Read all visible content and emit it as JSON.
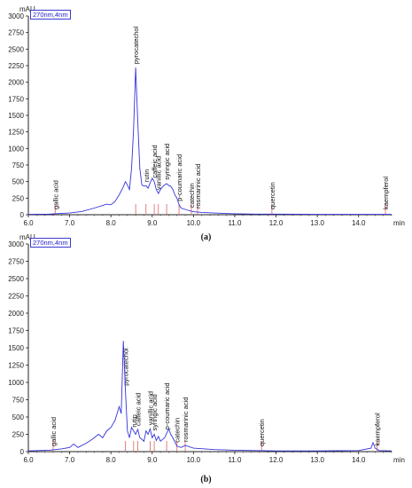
{
  "chart_data": [
    {
      "type": "line",
      "panel_label": "(a)",
      "ylabel": "mAU",
      "xlabel": "min",
      "wavelength_label": "270nm,4nm",
      "xlim": [
        6.0,
        14.8
      ],
      "ylim": [
        0,
        3000
      ],
      "xticks": [
        "6.0",
        "7.0",
        "8.0",
        "9.0",
        "10.0",
        "11.0",
        "12.0",
        "13.0",
        "14.0"
      ],
      "yticks": [
        "0",
        "250",
        "500",
        "750",
        "1000",
        "1250",
        "1500",
        "1750",
        "2000",
        "2250",
        "2500",
        "2750",
        "3000"
      ],
      "line_color": "#3333dd",
      "marker_color": "#e06060",
      "series": [
        {
          "x": [
            6.0,
            6.5,
            7.0,
            7.3,
            7.6,
            7.9,
            8.0,
            8.1,
            8.2,
            8.3,
            8.35,
            8.4,
            8.45,
            8.5,
            8.55,
            8.6,
            8.65,
            8.7,
            8.75,
            8.8,
            8.85,
            8.9,
            8.95,
            9.0,
            9.05,
            9.1,
            9.15,
            9.2,
            9.25,
            9.3,
            9.35,
            9.4,
            9.45,
            9.5,
            9.55,
            9.6,
            9.65,
            9.7,
            9.8,
            9.9,
            10.0,
            10.2,
            10.5,
            11.0,
            11.5,
            12.0,
            12.5,
            13.0,
            13.5,
            14.0,
            14.5,
            14.8
          ],
          "y": [
            5,
            10,
            25,
            50,
            100,
            160,
            150,
            200,
            300,
            420,
            500,
            450,
            380,
            700,
            1300,
            2220,
            1400,
            700,
            450,
            430,
            440,
            400,
            480,
            550,
            500,
            380,
            320,
            380,
            420,
            450,
            470,
            440,
            430,
            380,
            300,
            250,
            150,
            100,
            80,
            60,
            45,
            35,
            25,
            15,
            10,
            10,
            8,
            5,
            5,
            5,
            5,
            5
          ]
        }
      ],
      "peaks": [
        {
          "name": "gallic acid",
          "x": 6.65
        },
        {
          "name": "pyrocatechol",
          "x": 8.6
        },
        {
          "name": "rutin",
          "x": 8.85
        },
        {
          "name": "caffeic acid",
          "x": 9.05
        },
        {
          "name": "vanillic acid",
          "x": 9.15
        },
        {
          "name": "syringic acid",
          "x": 9.35
        },
        {
          "name": "p-coumaric acid",
          "x": 9.65
        },
        {
          "name": "catechin",
          "x": 9.95
        },
        {
          "name": "rosmarinic acid",
          "x": 10.1
        },
        {
          "name": "quercetin",
          "x": 11.9
        },
        {
          "name": "kaempferol",
          "x": 14.65
        }
      ]
    },
    {
      "type": "line",
      "panel_label": "(b)",
      "ylabel": "mAU",
      "xlabel": "min",
      "wavelength_label": "270nm,4nm",
      "xlim": [
        6.0,
        14.8
      ],
      "ylim": [
        0,
        3000
      ],
      "xticks": [
        "6.0",
        "7.0",
        "8.0",
        "9.0",
        "10.0",
        "11.0",
        "12.0",
        "13.0",
        "14.0"
      ],
      "yticks": [
        "0",
        "250",
        "500",
        "750",
        "1000",
        "1250",
        "1500",
        "1750",
        "2000",
        "2250",
        "2500",
        "2750",
        "3000"
      ],
      "line_color": "#3333dd",
      "marker_color": "#e06060",
      "series": [
        {
          "x": [
            6.0,
            6.5,
            6.8,
            7.0,
            7.1,
            7.2,
            7.4,
            7.55,
            7.7,
            7.8,
            7.9,
            8.0,
            8.1,
            8.2,
            8.25,
            8.3,
            8.35,
            8.4,
            8.45,
            8.5,
            8.55,
            8.6,
            8.65,
            8.7,
            8.75,
            8.8,
            8.85,
            8.9,
            8.95,
            9.0,
            9.05,
            9.1,
            9.15,
            9.2,
            9.3,
            9.4,
            9.45,
            9.5,
            9.6,
            9.7,
            9.8,
            10.0,
            10.5,
            11.0,
            11.5,
            12.0,
            13.0,
            14.0,
            14.3,
            14.35,
            14.4,
            14.5,
            14.8
          ],
          "y": [
            10,
            20,
            40,
            60,
            110,
            60,
            120,
            180,
            250,
            200,
            300,
            350,
            450,
            650,
            550,
            1600,
            900,
            300,
            200,
            350,
            300,
            250,
            320,
            200,
            180,
            150,
            300,
            250,
            330,
            200,
            250,
            160,
            220,
            150,
            200,
            330,
            250,
            200,
            80,
            60,
            90,
            50,
            30,
            20,
            15,
            10,
            10,
            15,
            50,
            130,
            50,
            15,
            10
          ]
        }
      ],
      "peaks": [
        {
          "name": "gallic acid",
          "x": 6.6
        },
        {
          "name": "pyrocatechol",
          "x": 8.35
        },
        {
          "name": "rutin",
          "x": 8.55
        },
        {
          "name": "caffeic acid",
          "x": 8.65
        },
        {
          "name": "vanillic acid",
          "x": 8.95
        },
        {
          "name": "syringic acid",
          "x": 9.05
        },
        {
          "name": "p-coumaric acid",
          "x": 9.35
        },
        {
          "name": "catechin",
          "x": 9.6
        },
        {
          "name": "rosmarinic acid",
          "x": 9.8
        },
        {
          "name": "quercetin",
          "x": 11.65
        },
        {
          "name": "kaempferol",
          "x": 14.45
        }
      ]
    }
  ]
}
